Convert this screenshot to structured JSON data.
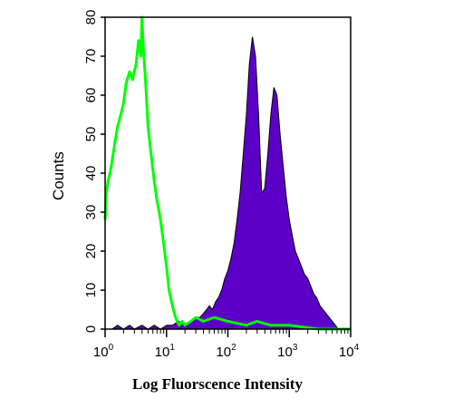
{
  "chart_data": {
    "type": "area",
    "title": "",
    "xlabel": "Log Fluorscence Intensity",
    "ylabel": "Counts",
    "x_scale": "log",
    "xlim": [
      1,
      10000
    ],
    "ylim": [
      0,
      80
    ],
    "y_ticks": [
      0,
      10,
      20,
      30,
      40,
      50,
      60,
      70,
      80
    ],
    "x_ticks": [
      {
        "value": 1,
        "base": "10",
        "exp": "0"
      },
      {
        "value": 10,
        "base": "10",
        "exp": "1"
      },
      {
        "value": 100,
        "base": "10",
        "exp": "2"
      },
      {
        "value": 1000,
        "base": "10",
        "exp": "3"
      },
      {
        "value": 10000,
        "base": "10",
        "exp": "4"
      }
    ],
    "grid": false,
    "series": [
      {
        "style": "filled",
        "color": "#5c00c8",
        "x": [
          1.3,
          1.6,
          2,
          2.5,
          3,
          4,
          5,
          6.3,
          8,
          10,
          12.6,
          15.8,
          20,
          25,
          31.6,
          35,
          40,
          45,
          50,
          56,
          63,
          70,
          79,
          89,
          100,
          112,
          126,
          141,
          158,
          178,
          200,
          224,
          251,
          282,
          316,
          355,
          398,
          447,
          501,
          562,
          631,
          708,
          794,
          891,
          1000,
          1122,
          1259,
          1413,
          1585,
          1778,
          1995,
          2239,
          2512,
          2818,
          3162,
          3548,
          3981,
          4467,
          5012,
          5623,
          6310,
          7079
        ],
        "values": [
          0,
          1,
          0,
          1,
          0,
          1,
          0,
          1,
          0,
          1,
          1,
          2,
          1,
          2,
          3,
          3,
          4,
          5,
          6,
          5,
          7,
          8,
          10,
          13,
          15,
          18,
          22,
          28,
          35,
          45,
          55,
          68,
          75,
          70,
          55,
          35,
          36,
          45,
          55,
          62,
          60,
          50,
          42,
          34,
          28,
          24,
          20,
          18,
          16,
          14,
          13,
          11,
          9,
          8,
          6,
          5,
          4,
          3,
          2,
          1,
          0,
          0
        ]
      },
      {
        "style": "line",
        "color": "#00ff00",
        "x": [
          1,
          1.05,
          1.12,
          1.2,
          1.3,
          1.45,
          1.6,
          1.8,
          2,
          2.2,
          2.5,
          2.8,
          3.2,
          3.5,
          3.8,
          4,
          4.2,
          4.5,
          5,
          5.6,
          6.3,
          7,
          8,
          9,
          10,
          11,
          12.5,
          14,
          16,
          18,
          20,
          25,
          30,
          40,
          60,
          100,
          200,
          300,
          500,
          1000,
          3000,
          10000
        ],
        "values": [
          28,
          35,
          38,
          40,
          43,
          48,
          52,
          55,
          58,
          63,
          66,
          64,
          68,
          74,
          70,
          80,
          72,
          65,
          52,
          45,
          38,
          33,
          28,
          22,
          16,
          10,
          6,
          3,
          1,
          2,
          1,
          2,
          3,
          2,
          3,
          2,
          1,
          2,
          1,
          1,
          0,
          0
        ]
      }
    ]
  }
}
